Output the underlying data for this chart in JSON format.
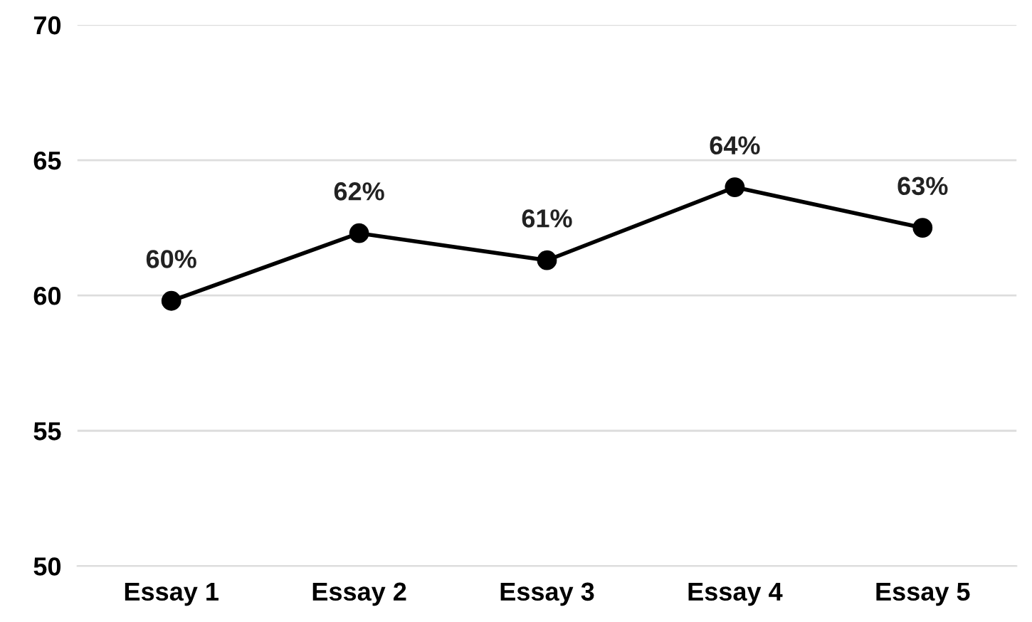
{
  "chart_data": {
    "type": "line",
    "categories": [
      "Essay 1",
      "Essay 2",
      "Essay 3",
      "Essay 4",
      "Essay 5"
    ],
    "values": [
      59.8,
      62.3,
      61.3,
      64,
      62.5
    ],
    "value_labels": [
      "60%",
      "62%",
      "61%",
      "64%",
      "63%"
    ],
    "color": "#000000",
    "marker": "circle",
    "line_style": "solid",
    "ylim": [
      50,
      70
    ],
    "yticks": [
      50,
      55,
      60,
      65,
      70
    ],
    "grid": "y",
    "legend": false
  }
}
